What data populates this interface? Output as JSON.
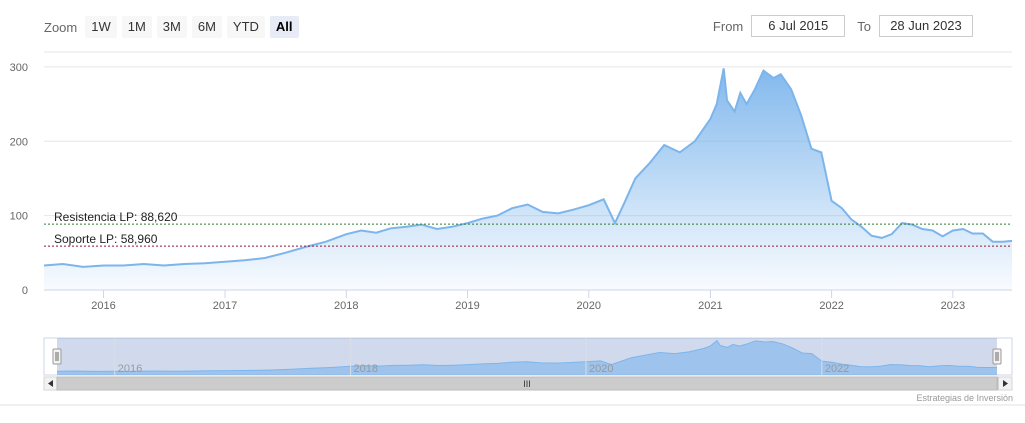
{
  "toolbar": {
    "zoom_label": "Zoom",
    "buttons": [
      "1W",
      "1M",
      "3M",
      "6M",
      "YTD",
      "All"
    ],
    "active": "All",
    "from_label": "From",
    "from_value": "6 Jul 2015",
    "to_label": "To",
    "to_value": "28 Jun 2023"
  },
  "colors": {
    "line": "#7cb5ec",
    "resistance": "#2e7d32",
    "support": "#8b1a3a"
  },
  "credits": "Estrategias de Inversión",
  "chart_data": {
    "type": "area",
    "title": "",
    "xlabel": "",
    "ylabel": "",
    "x_ticks": [
      "2016",
      "2017",
      "2018",
      "2019",
      "2020",
      "2021",
      "2022",
      "2023"
    ],
    "y_ticks": [
      "0",
      "100",
      "200",
      "300"
    ],
    "ylim": [
      0,
      320
    ],
    "xlim": [
      "2015-07-06",
      "2023-06-28"
    ],
    "grid": true,
    "series": [
      {
        "values": [
          [
            "2015-07-06",
            33
          ],
          [
            "2015-09-01",
            35
          ],
          [
            "2015-11-01",
            31
          ],
          [
            "2016-01-01",
            33
          ],
          [
            "2016-03-01",
            33
          ],
          [
            "2016-05-01",
            35
          ],
          [
            "2016-07-01",
            33
          ],
          [
            "2016-09-01",
            35
          ],
          [
            "2016-11-01",
            36
          ],
          [
            "2017-01-01",
            38
          ],
          [
            "2017-03-01",
            40
          ],
          [
            "2017-05-01",
            43
          ],
          [
            "2017-07-01",
            50
          ],
          [
            "2017-09-01",
            58
          ],
          [
            "2017-11-01",
            65
          ],
          [
            "2018-01-01",
            75
          ],
          [
            "2018-02-15",
            80
          ],
          [
            "2018-04-01",
            77
          ],
          [
            "2018-05-15",
            83
          ],
          [
            "2018-07-01",
            85
          ],
          [
            "2018-08-15",
            88
          ],
          [
            "2018-10-01",
            82
          ],
          [
            "2018-11-15",
            85
          ],
          [
            "2019-01-01",
            90
          ],
          [
            "2019-02-15",
            96
          ],
          [
            "2019-04-01",
            100
          ],
          [
            "2019-05-15",
            110
          ],
          [
            "2019-07-01",
            115
          ],
          [
            "2019-08-15",
            105
          ],
          [
            "2019-10-01",
            103
          ],
          [
            "2019-11-15",
            108
          ],
          [
            "2020-01-01",
            114
          ],
          [
            "2020-02-15",
            122
          ],
          [
            "2020-03-20",
            90
          ],
          [
            "2020-04-20",
            120
          ],
          [
            "2020-05-20",
            150
          ],
          [
            "2020-07-01",
            170
          ],
          [
            "2020-08-15",
            195
          ],
          [
            "2020-10-01",
            185
          ],
          [
            "2020-11-15",
            200
          ],
          [
            "2021-01-01",
            230
          ],
          [
            "2021-01-20",
            250
          ],
          [
            "2021-02-10",
            298
          ],
          [
            "2021-02-20",
            255
          ],
          [
            "2021-03-15",
            240
          ],
          [
            "2021-04-01",
            265
          ],
          [
            "2021-04-20",
            250
          ],
          [
            "2021-05-15",
            270
          ],
          [
            "2021-06-10",
            295
          ],
          [
            "2021-07-10",
            285
          ],
          [
            "2021-08-01",
            290
          ],
          [
            "2021-09-01",
            270
          ],
          [
            "2021-10-01",
            235
          ],
          [
            "2021-11-01",
            190
          ],
          [
            "2021-12-01",
            185
          ],
          [
            "2022-01-01",
            120
          ],
          [
            "2022-02-01",
            110
          ],
          [
            "2022-03-01",
            95
          ],
          [
            "2022-04-01",
            85
          ],
          [
            "2022-05-01",
            73
          ],
          [
            "2022-06-01",
            70
          ],
          [
            "2022-07-01",
            75
          ],
          [
            "2022-08-01",
            90
          ],
          [
            "2022-09-01",
            88
          ],
          [
            "2022-10-01",
            82
          ],
          [
            "2022-11-01",
            80
          ],
          [
            "2022-12-01",
            72
          ],
          [
            "2023-01-01",
            80
          ],
          [
            "2023-02-01",
            82
          ],
          [
            "2023-03-01",
            76
          ],
          [
            "2023-04-01",
            76
          ],
          [
            "2023-05-01",
            65
          ],
          [
            "2023-06-01",
            65
          ],
          [
            "2023-06-28",
            66
          ]
        ]
      }
    ],
    "annotations": [
      {
        "label": "Resistencia LP: 88,620",
        "value": 88.62
      },
      {
        "label": "Soporte LP: 58,960",
        "value": 58.96
      }
    ],
    "navigator": {
      "x_ticks": [
        "2016",
        "2018",
        "2020",
        "2022"
      ],
      "scrollbar_label": "III"
    }
  }
}
